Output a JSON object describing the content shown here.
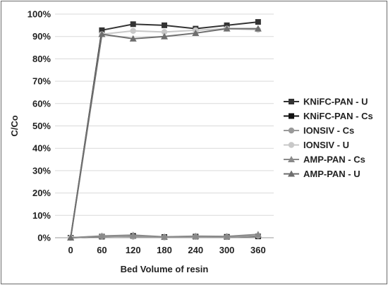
{
  "chart_data": {
    "type": "line",
    "title": "",
    "xlabel": "Bed Volume of resin",
    "ylabel": "C/Co",
    "x": [
      0,
      60,
      120,
      180,
      240,
      300,
      360
    ],
    "x_tick_labels": [
      "0",
      "60",
      "120",
      "180",
      "240",
      "300",
      "360"
    ],
    "ylim": [
      0,
      100
    ],
    "y_tick_labels": [
      "0%",
      "10%",
      "20%",
      "30%",
      "40%",
      "50%",
      "60%",
      "70%",
      "80%",
      "90%",
      "100%"
    ],
    "grid": true,
    "legend_position": "right",
    "series": [
      {
        "name": "KNiFC-PAN - U",
        "marker": "square",
        "color": "#333333",
        "values": [
          0,
          92.8,
          95.5,
          95.0,
          93.5,
          95.0,
          96.5
        ]
      },
      {
        "name": "KNiFC-PAN - Cs",
        "marker": "square",
        "color": "#111111",
        "values": [
          0,
          0.5,
          0.8,
          0.3,
          0.5,
          0.4,
          0.6
        ]
      },
      {
        "name": "IONSIV - Cs",
        "marker": "circle",
        "color": "#9a9a9a",
        "values": [
          0,
          0.6,
          0.5,
          0.2,
          0.4,
          0.3,
          0.8
        ]
      },
      {
        "name": "IONSIV - U",
        "marker": "circle",
        "color": "#c8c8c8",
        "values": [
          0,
          91.0,
          92.5,
          92.0,
          92.8,
          93.5,
          93.0
        ]
      },
      {
        "name": "AMP-PAN - Cs",
        "marker": "triangle",
        "color": "#8a8a8a",
        "values": [
          0,
          0.8,
          1.2,
          0.4,
          0.7,
          0.6,
          1.5
        ]
      },
      {
        "name": "AMP-PAN - U",
        "marker": "triangle",
        "color": "#6e6e6e",
        "values": [
          0,
          91.0,
          89.0,
          90.0,
          91.5,
          93.5,
          93.5
        ]
      }
    ]
  }
}
